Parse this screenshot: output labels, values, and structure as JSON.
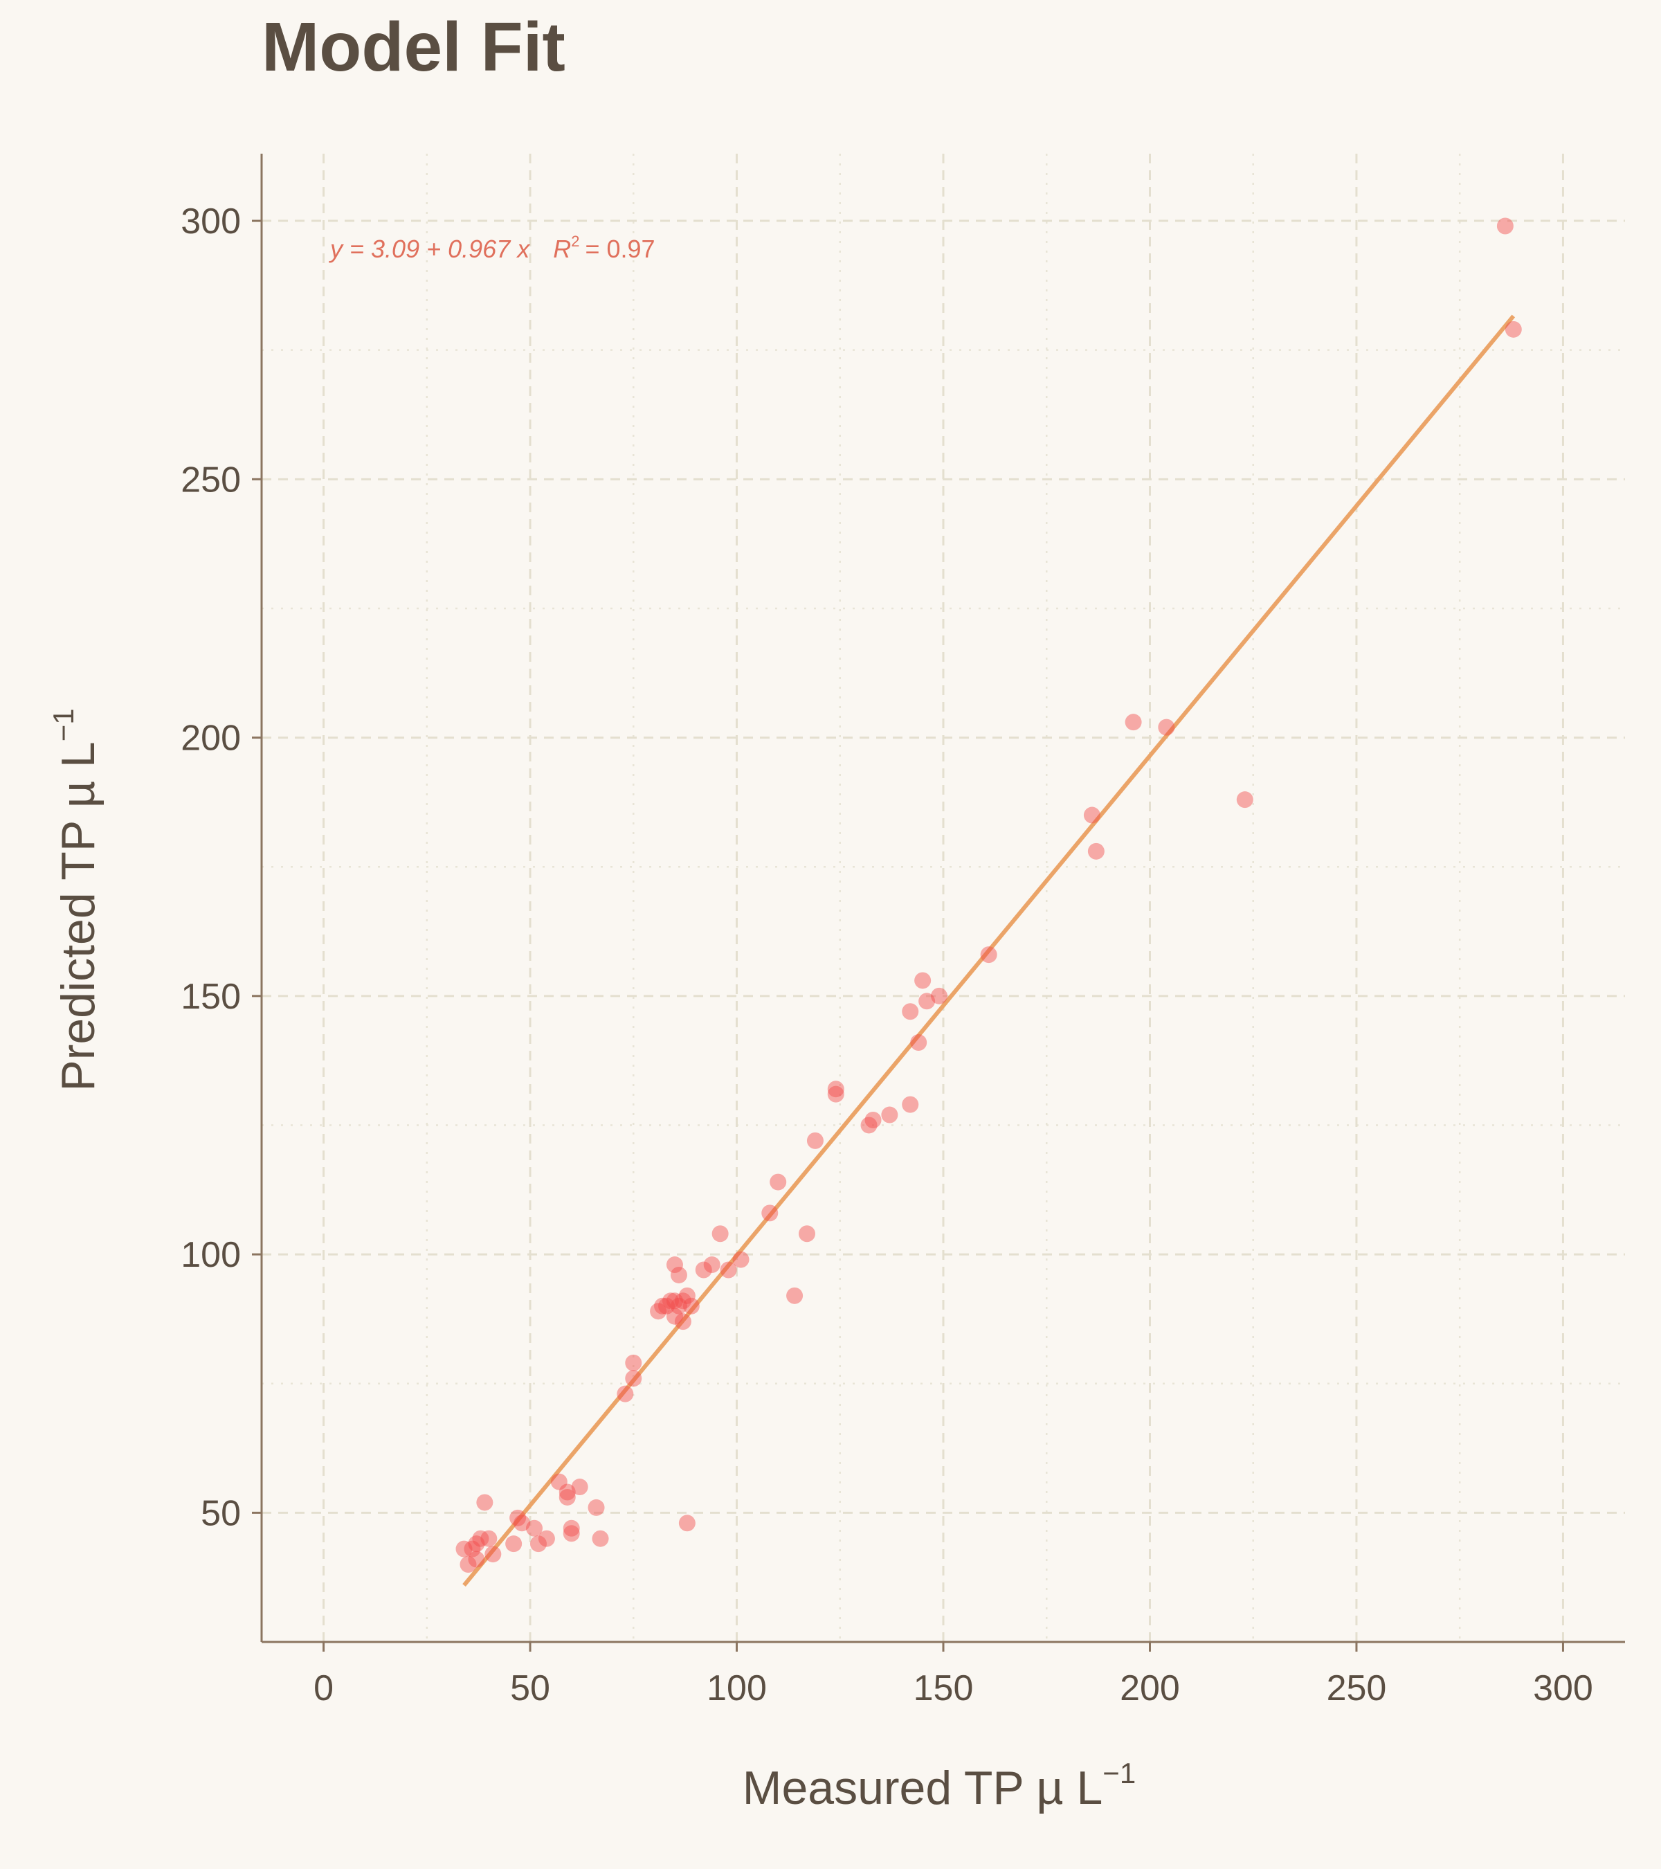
{
  "chart_data": {
    "type": "scatter",
    "title": "Model Fit",
    "xlabel": {
      "main": "Measured TP µ L",
      "sup": "−1"
    },
    "ylabel": {
      "main": "Predicted TP µ L",
      "sup": "−1"
    },
    "xlim": [
      -15,
      315
    ],
    "ylim": [
      25,
      313
    ],
    "xticks": [
      0,
      50,
      100,
      150,
      200,
      250,
      300
    ],
    "yticks": [
      50,
      100,
      150,
      200,
      250,
      300
    ],
    "xtick_labels": [
      "0",
      "50",
      "100",
      "150",
      "200",
      "250",
      "300"
    ],
    "ytick_labels": [
      "50",
      "100",
      "150",
      "200",
      "250",
      "300"
    ],
    "x_minor_ticks": [
      25,
      75,
      125,
      175,
      225,
      275
    ],
    "y_minor_ticks": [
      25,
      75,
      125,
      175,
      225,
      275
    ],
    "grid": true,
    "annotation": {
      "equation": "y = 3.09 + 0.967 x",
      "r2_label": "R",
      "r2_sup": "2",
      "r2_value": "= 0.97"
    },
    "fit_line": {
      "intercept": 3.09,
      "slope": 0.967,
      "x_range": [
        34,
        288
      ]
    },
    "point_color": "#f24a4a",
    "line_color": "#eba468",
    "series": [
      {
        "points": [
          [
            286,
            299
          ],
          [
            288,
            279
          ],
          [
            196,
            203
          ],
          [
            204,
            202
          ],
          [
            223,
            188
          ],
          [
            186,
            185
          ],
          [
            187,
            178
          ],
          [
            161,
            158
          ],
          [
            145,
            153
          ],
          [
            149,
            150
          ],
          [
            146,
            149
          ],
          [
            142,
            147
          ],
          [
            144,
            141
          ],
          [
            124,
            132
          ],
          [
            124,
            131
          ],
          [
            142,
            129
          ],
          [
            133,
            126
          ],
          [
            137,
            127
          ],
          [
            132,
            125
          ],
          [
            119,
            122
          ],
          [
            110,
            114
          ],
          [
            108,
            108
          ],
          [
            117,
            104
          ],
          [
            96,
            104
          ],
          [
            101,
            99
          ],
          [
            94,
            98
          ],
          [
            85,
            98
          ],
          [
            92,
            97
          ],
          [
            98,
            97
          ],
          [
            86,
            96
          ],
          [
            114,
            92
          ],
          [
            88,
            92
          ],
          [
            87,
            91
          ],
          [
            84,
            91
          ],
          [
            83,
            90
          ],
          [
            85,
            91
          ],
          [
            86,
            90
          ],
          [
            82,
            90
          ],
          [
            89,
            90
          ],
          [
            81,
            89
          ],
          [
            85,
            88
          ],
          [
            87,
            87
          ],
          [
            75,
            79
          ],
          [
            75,
            76
          ],
          [
            73,
            73
          ],
          [
            57,
            56
          ],
          [
            62,
            55
          ],
          [
            59,
            54
          ],
          [
            59,
            53
          ],
          [
            66,
            51
          ],
          [
            39,
            52
          ],
          [
            47,
            49
          ],
          [
            48,
            48
          ],
          [
            51,
            47
          ],
          [
            60,
            47
          ],
          [
            88,
            48
          ],
          [
            60,
            46
          ],
          [
            67,
            45
          ],
          [
            54,
            45
          ],
          [
            52,
            44
          ],
          [
            46,
            44
          ],
          [
            38,
            45
          ],
          [
            40,
            45
          ],
          [
            37,
            44
          ],
          [
            34,
            43
          ],
          [
            36,
            43
          ],
          [
            41,
            42
          ],
          [
            37,
            41
          ],
          [
            35,
            40
          ]
        ]
      }
    ]
  }
}
